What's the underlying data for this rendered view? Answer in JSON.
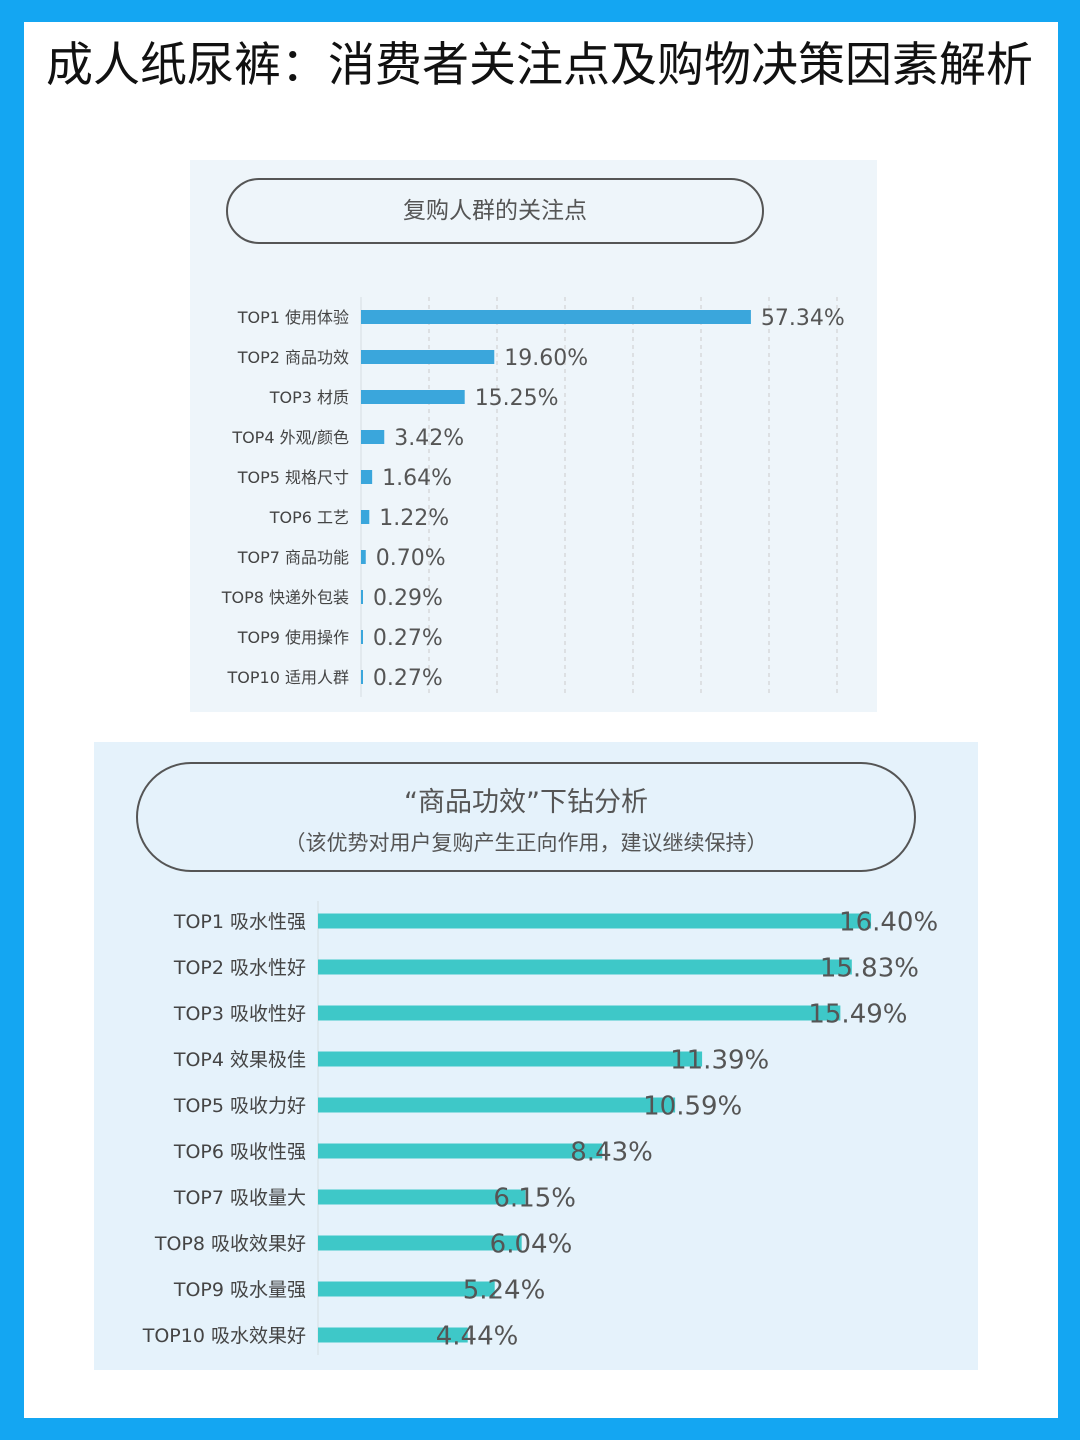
{
  "title": "成人纸尿裤：消费者关注点及购物决策因素解析",
  "chart_data": [
    {
      "type": "bar",
      "orientation": "horizontal",
      "title": "复购人群的关注点",
      "color": "#3aa6dc",
      "xlim": [
        0,
        70
      ],
      "categories": [
        "TOP1 使用体验",
        "TOP2 商品功效",
        "TOP3 材质",
        "TOP4 外观/颜色",
        "TOP5 规格尺寸",
        "TOP6 工艺",
        "TOP7 商品功能",
        "TOP8 快递外包装",
        "TOP9 使用操作",
        "TOP10 适用人群"
      ],
      "values": [
        57.34,
        19.6,
        15.25,
        3.42,
        1.64,
        1.22,
        0.7,
        0.29,
        0.27,
        0.27
      ],
      "labels": [
        "57.34%",
        "19.60%",
        "15.25%",
        "3.42%",
        "1.64%",
        "1.22%",
        "0.70%",
        "0.29%",
        "0.27%",
        "0.27%"
      ]
    },
    {
      "type": "bar",
      "orientation": "horizontal",
      "title": "“商品功效”下钻分析",
      "subtitle": "（该优势对用户复购产生正向作用，建议继续保持）",
      "color": "#3ec8c8",
      "xlim": [
        0,
        18
      ],
      "categories": [
        "TOP1 吸水性强",
        "TOP2 吸水性好",
        "TOP3 吸收性好",
        "TOP4 效果极佳",
        "TOP5 吸收力好",
        "TOP6 吸收性强",
        "TOP7 吸收量大",
        "TOP8 吸收效果好",
        "TOP9 吸水量强",
        "TOP10 吸水效果好"
      ],
      "values": [
        16.4,
        15.83,
        15.49,
        11.39,
        10.59,
        8.43,
        6.15,
        6.04,
        5.24,
        4.44
      ],
      "labels": [
        "16.40%",
        "15.83%",
        "15.49%",
        "11.39%",
        "10.59%",
        "8.43%",
        "6.15%",
        "6.04%",
        "5.24%",
        "4.44%"
      ]
    }
  ]
}
